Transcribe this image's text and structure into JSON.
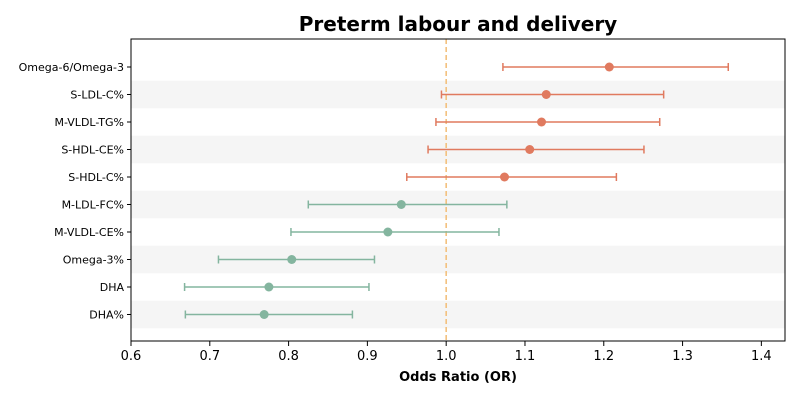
{
  "chart_data": {
    "type": "scatter",
    "subtype": "forest-plot",
    "title": "Preterm labour and delivery",
    "xlabel": "Odds Ratio (OR)",
    "ylabel": "",
    "xlim": [
      0.6,
      1.43
    ],
    "xticks": [
      "0.6",
      "0.7",
      "0.8",
      "0.9",
      "1.0",
      "1.1",
      "1.2",
      "1.3",
      "1.4"
    ],
    "reference_line": {
      "x": 1.0,
      "color": "#f3c17e",
      "style": "dashed"
    },
    "colors": {
      "risk": "#e07a5f",
      "protective": "#84b59f",
      "band": "#f5f5f5"
    },
    "alternating_row_bands": true,
    "grid": false,
    "items": [
      {
        "label": "Omega-6/Omega-3",
        "or": 1.207,
        "lower": 1.072,
        "upper": 1.358,
        "group": "risk"
      },
      {
        "label": "S-LDL-C%",
        "or": 1.127,
        "lower": 0.994,
        "upper": 1.276,
        "group": "risk"
      },
      {
        "label": "M-VLDL-TG%",
        "or": 1.121,
        "lower": 0.987,
        "upper": 1.271,
        "group": "risk"
      },
      {
        "label": "S-HDL-CE%",
        "or": 1.106,
        "lower": 0.977,
        "upper": 1.251,
        "group": "risk"
      },
      {
        "label": "S-HDL-C%",
        "or": 1.074,
        "lower": 0.95,
        "upper": 1.216,
        "group": "risk"
      },
      {
        "label": "M-LDL-FC%",
        "or": 0.943,
        "lower": 0.825,
        "upper": 1.077,
        "group": "protective"
      },
      {
        "label": "M-VLDL-CE%",
        "or": 0.926,
        "lower": 0.803,
        "upper": 1.067,
        "group": "protective"
      },
      {
        "label": "Omega-3%",
        "or": 0.804,
        "lower": 0.711,
        "upper": 0.909,
        "group": "protective"
      },
      {
        "label": "DHA",
        "or": 0.775,
        "lower": 0.668,
        "upper": 0.902,
        "group": "protective"
      },
      {
        "label": "DHA%",
        "or": 0.769,
        "lower": 0.669,
        "upper": 0.881,
        "group": "protective"
      }
    ]
  }
}
